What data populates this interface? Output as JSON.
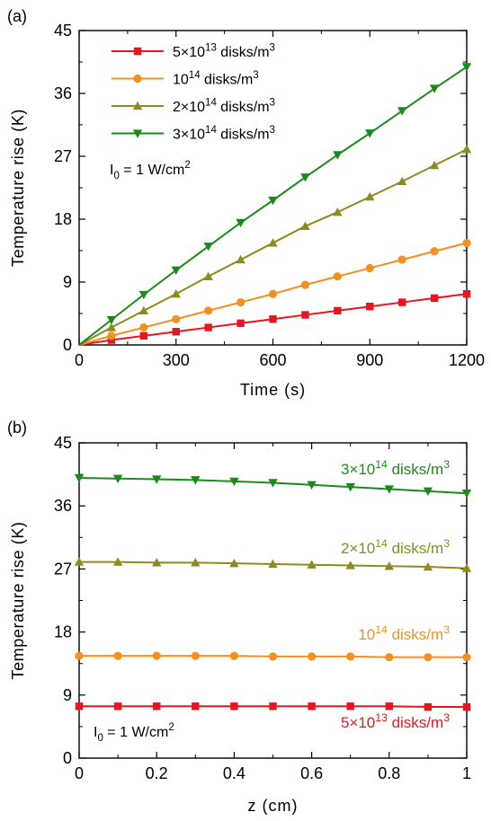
{
  "chart_data": [
    {
      "type": "line",
      "panel_label": "(a)",
      "xlabel": "Time (s)",
      "ylabel": "Temperature rise (K)",
      "xlim": [
        0,
        1200
      ],
      "ylim": [
        0,
        45
      ],
      "xticks": [
        0,
        300,
        600,
        900,
        1200
      ],
      "yticks": [
        0,
        9,
        18,
        27,
        36,
        45
      ],
      "grid": false,
      "legend_position": "top-left",
      "annotation": {
        "base": "I",
        "sub": "0",
        "text": " = 1 W/cm",
        "sup": "2"
      },
      "series": [
        {
          "name": "5×10^13 disks/m^3",
          "label_parts": {
            "base": "5×10",
            "sup": "13",
            "unit": " disks/m",
            "unit_sup": "3"
          },
          "color": "#e8141e",
          "marker": "square",
          "x": [
            0,
            100,
            200,
            300,
            400,
            500,
            600,
            700,
            800,
            900,
            1000,
            1100,
            1200
          ],
          "y": [
            0,
            0.7,
            1.3,
            1.9,
            2.5,
            3.1,
            3.7,
            4.3,
            4.9,
            5.5,
            6.1,
            6.7,
            7.3
          ]
        },
        {
          "name": "10^14 disks/m^3",
          "label_parts": {
            "base": "10",
            "sup": "14",
            "unit": " disks/m",
            "unit_sup": "3"
          },
          "color": "#f39020",
          "marker": "circle",
          "x": [
            0,
            100,
            200,
            300,
            400,
            500,
            600,
            700,
            800,
            900,
            1000,
            1100,
            1200
          ],
          "y": [
            0,
            1.3,
            2.5,
            3.7,
            4.9,
            6.1,
            7.3,
            8.6,
            9.8,
            11.0,
            12.2,
            13.4,
            14.6
          ]
        },
        {
          "name": "2×10^14 disks/m^3",
          "label_parts": {
            "base": "2×10",
            "sup": "14",
            "unit": " disks/m",
            "unit_sup": "3"
          },
          "color": "#8e8a1c",
          "marker": "triangle-up",
          "x": [
            0,
            100,
            200,
            300,
            400,
            500,
            600,
            700,
            800,
            900,
            1000,
            1100,
            1200
          ],
          "y": [
            0,
            2.5,
            4.9,
            7.3,
            9.8,
            12.2,
            14.6,
            17.0,
            19.0,
            21.2,
            23.4,
            25.7,
            28.0
          ]
        },
        {
          "name": "3×10^14 disks/m^3",
          "label_parts": {
            "base": "3×10",
            "sup": "14",
            "unit": " disks/m",
            "unit_sup": "3"
          },
          "color": "#1b8a1b",
          "marker": "triangle-down",
          "x": [
            0,
            100,
            200,
            300,
            400,
            500,
            600,
            700,
            800,
            900,
            1000,
            1100,
            1200
          ],
          "y": [
            0,
            3.6,
            7.2,
            10.7,
            14.1,
            17.5,
            20.7,
            24.0,
            27.2,
            30.3,
            33.5,
            36.7,
            39.8
          ]
        }
      ]
    },
    {
      "type": "line",
      "panel_label": "(b)",
      "xlabel": "z (cm)",
      "ylabel": "Temperature rise (K)",
      "xlim": [
        0,
        1
      ],
      "ylim": [
        0,
        45
      ],
      "xticks": [
        0,
        0.2,
        0.4,
        0.6,
        0.8,
        1
      ],
      "xtick_labels": [
        "0",
        "0.2",
        "0.4",
        "0.6",
        "0.8",
        "1"
      ],
      "yticks": [
        0,
        9,
        18,
        27,
        36,
        45
      ],
      "grid": false,
      "annotation": {
        "base": "I",
        "sub": "0",
        "text": " = 1 W/cm",
        "sup": "2"
      },
      "series": [
        {
          "name": "3×10^14 disks/m^3",
          "label_parts": {
            "base": "3×10",
            "sup": "14",
            "unit": " disks/m",
            "unit_sup": "3"
          },
          "color": "#1b8a1b",
          "marker": "triangle-down",
          "x": [
            0,
            0.1,
            0.2,
            0.3,
            0.4,
            0.5,
            0.6,
            0.7,
            0.8,
            0.9,
            1
          ],
          "y": [
            40.0,
            39.9,
            39.8,
            39.7,
            39.5,
            39.3,
            39.0,
            38.7,
            38.4,
            38.1,
            37.8
          ]
        },
        {
          "name": "2×10^14 disks/m^3",
          "label_parts": {
            "base": "2×10",
            "sup": "14",
            "unit": " disks/m",
            "unit_sup": "3"
          },
          "color": "#8e8a1c",
          "marker": "triangle-up",
          "x": [
            0,
            0.1,
            0.2,
            0.3,
            0.4,
            0.5,
            0.6,
            0.7,
            0.8,
            0.9,
            1
          ],
          "y": [
            28.0,
            28.0,
            27.9,
            27.9,
            27.8,
            27.7,
            27.6,
            27.5,
            27.4,
            27.3,
            27.1
          ]
        },
        {
          "name": "10^14 disks/m^3",
          "label_parts": {
            "base": "10",
            "sup": "14",
            "unit": " disks/m",
            "unit_sup": "3"
          },
          "color": "#f39020",
          "marker": "circle",
          "x": [
            0,
            0.1,
            0.2,
            0.3,
            0.4,
            0.5,
            0.6,
            0.7,
            0.8,
            0.9,
            1
          ],
          "y": [
            14.6,
            14.6,
            14.6,
            14.6,
            14.6,
            14.5,
            14.5,
            14.5,
            14.4,
            14.4,
            14.4
          ]
        },
        {
          "name": "5×10^13 disks/m^3",
          "label_parts": {
            "base": "5×10",
            "sup": "13",
            "unit": " disks/m",
            "unit_sup": "3"
          },
          "color": "#e8141e",
          "marker": "square",
          "x": [
            0,
            0.1,
            0.2,
            0.3,
            0.4,
            0.5,
            0.6,
            0.7,
            0.8,
            0.9,
            1
          ],
          "y": [
            7.4,
            7.4,
            7.4,
            7.4,
            7.4,
            7.4,
            7.4,
            7.4,
            7.4,
            7.3,
            7.3
          ]
        }
      ]
    }
  ]
}
